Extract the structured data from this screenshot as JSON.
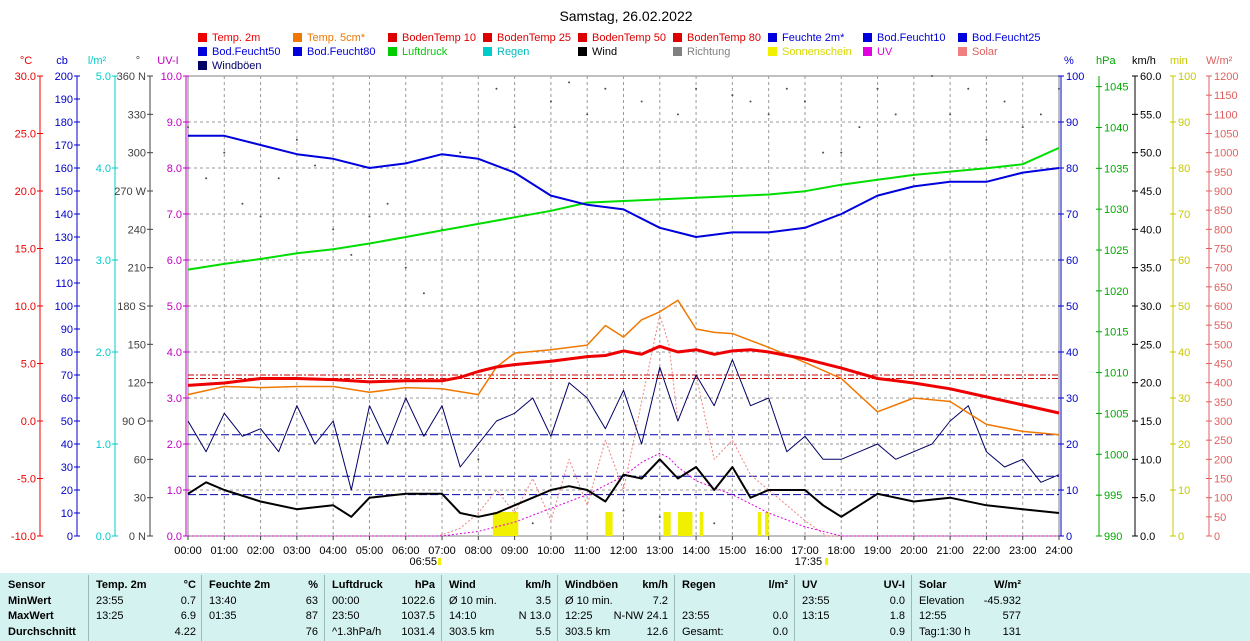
{
  "title": "Samstag, 26.02.2022",
  "legend": [
    {
      "label": "Temp. 2m",
      "color": "#ee0000"
    },
    {
      "label": "Temp. 5cm*",
      "color": "#f07800"
    },
    {
      "label": "BodenTemp 10",
      "color": "#dd0000"
    },
    {
      "label": "BodenTemp 25",
      "color": "#dd0000"
    },
    {
      "label": "BodenTemp 50",
      "color": "#dd0000"
    },
    {
      "label": "BodenTemp 80",
      "color": "#dd0000"
    },
    {
      "label": "Feuchte 2m*",
      "color": "#0000dd"
    },
    {
      "label": "Bod.Feucht10",
      "color": "#0000dd"
    },
    {
      "label": "Bod.Feucht25",
      "color": "#0000dd"
    },
    {
      "label": "Bod.Feucht50",
      "color": "#0000dd"
    },
    {
      "label": "Bod.Feucht80",
      "color": "#0000dd"
    },
    {
      "label": "Luftdruck",
      "color": "#00cc00"
    },
    {
      "label": "Regen",
      "color": "#00cccc"
    },
    {
      "label": "Wind",
      "color": "#000000"
    },
    {
      "label": "Richtung",
      "color": "#808080"
    },
    {
      "label": "Sonnenschein",
      "color": "#f0f000"
    },
    {
      "label": "UV",
      "color": "#e000e0"
    },
    {
      "label": "Solar",
      "color": "#f08080"
    },
    {
      "label": "Windböen",
      "color": "#000066"
    }
  ],
  "colors": {
    "temp": "#ee0000",
    "temp5": "#f07800",
    "humidity": "#0000dd",
    "pressure": "#00dd00",
    "rain": "#00cccc",
    "wind": "#000000",
    "gust": "#000066",
    "direction": "#505050",
    "sun": "#f0f000",
    "uv": "#e000e0",
    "solar": "#f08080",
    "cb": "#0000cc",
    "kmh": "#000000",
    "stats_bg": "#d4f2f0"
  },
  "axes": {
    "temp": {
      "unit": "°C",
      "ticks": [
        "30.0",
        "25.0",
        "20.0",
        "15.0",
        "10.0",
        "5.0",
        "0.0",
        "-5.0",
        "-10.0"
      ]
    },
    "cb": {
      "unit": "cb",
      "ticks": [
        "200",
        "190",
        "180",
        "170",
        "160",
        "150",
        "140",
        "130",
        "120",
        "110",
        "100",
        "90",
        "80",
        "70",
        "60",
        "50",
        "40",
        "30",
        "20",
        "10",
        "0"
      ]
    },
    "rain": {
      "unit": "l/m²",
      "ticks": [
        "5.0",
        "4.0",
        "3.0",
        "2.0",
        "1.0",
        "0.0"
      ]
    },
    "dir": {
      "unit": "°",
      "ticks": [
        "360 N",
        "330",
        "300",
        "270 W",
        "240",
        "210",
        "180 S",
        "150",
        "120",
        "90 O",
        "60",
        "30",
        "0 N"
      ]
    },
    "uv": {
      "unit": "UV-I",
      "ticks": [
        "10.0",
        "9.0",
        "8.0",
        "7.0",
        "6.0",
        "5.0",
        "4.0",
        "3.0",
        "2.0",
        "1.0",
        "0.0"
      ]
    },
    "humidity": {
      "unit": "%",
      "ticks": [
        "100",
        "90",
        "80",
        "70",
        "60",
        "50",
        "40",
        "30",
        "20",
        "10",
        "0"
      ]
    },
    "pressure": {
      "unit": "hPa",
      "ticks": [
        "1045",
        "1040",
        "1035",
        "1030",
        "1025",
        "1020",
        "1015",
        "1010",
        "1005",
        "1000",
        "995",
        "990"
      ]
    },
    "kmh": {
      "unit": "km/h",
      "ticks": [
        "60.0",
        "55.0",
        "50.0",
        "45.0",
        "40.0",
        "35.0",
        "30.0",
        "25.0",
        "20.0",
        "15.0",
        "10.0",
        "5.0",
        "0.0"
      ]
    },
    "min": {
      "unit": "min",
      "ticks": [
        "100",
        "90",
        "80",
        "70",
        "60",
        "50",
        "40",
        "30",
        "20",
        "10",
        "0"
      ]
    },
    "solar": {
      "unit": "W/m²",
      "ticks": [
        "1200",
        "1150",
        "1100",
        "1050",
        "1000",
        "950",
        "900",
        "850",
        "800",
        "750",
        "700",
        "650",
        "600",
        "550",
        "500",
        "450",
        "400",
        "350",
        "300",
        "250",
        "200",
        "150",
        "100",
        "50",
        "0"
      ]
    },
    "time": {
      "ticks": [
        "00:00",
        "01:00",
        "02:00",
        "03:00",
        "04:00",
        "05:00",
        "06:00",
        "07:00",
        "08:00",
        "09:00",
        "10:00",
        "11:00",
        "12:00",
        "13:00",
        "14:00",
        "15:00",
        "16:00",
        "17:00",
        "18:00",
        "19:00",
        "20:00",
        "21:00",
        "22:00",
        "23:00",
        "24:00"
      ]
    },
    "sunrise": "06:55",
    "sunset": "17:35"
  },
  "chart_data": {
    "type": "line",
    "title": "Samstag, 26.02.2022",
    "xlabel": "",
    "x_range": [
      "00:00",
      "24:00"
    ],
    "grid": true,
    "series": [
      {
        "name": "Temp. 2m",
        "unit": "°C",
        "x": [
          0,
          1,
          2,
          3,
          4,
          5,
          6,
          7,
          7.5,
          8,
          8.5,
          9,
          10,
          11,
          11.5,
          12,
          12.5,
          13,
          13.5,
          14,
          14.5,
          15,
          15.5,
          16,
          17,
          18,
          19,
          20,
          21,
          22,
          23,
          24
        ],
        "y": [
          3.1,
          3.3,
          3.7,
          3.7,
          3.6,
          3.4,
          3.5,
          3.5,
          3.8,
          4.3,
          4.7,
          4.9,
          5.2,
          5.6,
          5.7,
          6.1,
          5.8,
          6.5,
          6.0,
          6.2,
          5.8,
          6.1,
          6.2,
          6.0,
          5.4,
          4.6,
          3.7,
          3.3,
          2.8,
          2.1,
          1.4,
          0.7
        ]
      },
      {
        "name": "Temp. 5cm*",
        "unit": "°C",
        "x": [
          0,
          1,
          2,
          3,
          4,
          5,
          6,
          7,
          8,
          8.5,
          9,
          10,
          11,
          11.5,
          12,
          12.5,
          13,
          13.5,
          14,
          14.5,
          15,
          16,
          17,
          18,
          19,
          20,
          21,
          22,
          23,
          24
        ],
        "y": [
          2.3,
          3.0,
          2.9,
          3.0,
          3.0,
          2.5,
          2.9,
          2.8,
          2.3,
          4.7,
          5.9,
          6.2,
          6.6,
          8.3,
          7.3,
          8.8,
          9.5,
          10.5,
          8.0,
          7.7,
          7.6,
          6.4,
          5.1,
          3.7,
          0.8,
          2.0,
          1.7,
          -0.3,
          -0.9,
          -1.2
        ]
      },
      {
        "name": "Feuchte 2m*",
        "unit": "%",
        "x": [
          0,
          1,
          2,
          3,
          4,
          5,
          6,
          7,
          8,
          9,
          10,
          11,
          12,
          13,
          13.5,
          14,
          15,
          16,
          17,
          18,
          19,
          20,
          21,
          22,
          23,
          24
        ],
        "y": [
          87,
          87,
          85,
          83,
          82,
          80,
          81,
          83,
          82,
          79,
          74,
          72,
          71,
          67,
          66,
          65,
          66,
          66,
          67,
          70,
          74,
          76,
          77,
          77,
          79,
          80
        ]
      },
      {
        "name": "Luftdruck",
        "unit": "hPa",
        "x": [
          0,
          1,
          2,
          3,
          4,
          5,
          6,
          7,
          8,
          9,
          10,
          11,
          12,
          13,
          14,
          15,
          16,
          17,
          18,
          19,
          20,
          21,
          22,
          23,
          24
        ],
        "y": [
          1022.6,
          1023.3,
          1023.9,
          1024.6,
          1025.1,
          1025.8,
          1026.6,
          1027.4,
          1028.2,
          1029.0,
          1029.8,
          1030.8,
          1031.0,
          1031.2,
          1031.4,
          1031.6,
          1031.8,
          1032.2,
          1033.0,
          1033.6,
          1034.2,
          1034.6,
          1035.0,
          1035.5,
          1037.5
        ]
      },
      {
        "name": "Wind",
        "unit": "km/h",
        "x": [
          0,
          0.5,
          1,
          2,
          3,
          4,
          4.5,
          5,
          6,
          7,
          7.5,
          8,
          8.5,
          9,
          9.5,
          10,
          10.5,
          11,
          11.5,
          12,
          12.5,
          13,
          13.5,
          14,
          14.5,
          15,
          15.5,
          16,
          16.5,
          17,
          17.5,
          18,
          18.5,
          19,
          20,
          21,
          22,
          23,
          24
        ],
        "y": [
          5.5,
          7.0,
          6.0,
          4.5,
          3.5,
          4.0,
          2.5,
          5.0,
          5.5,
          5.5,
          3.0,
          2.5,
          3.0,
          4.0,
          5.0,
          6.0,
          6.5,
          6.0,
          4.5,
          8.0,
          7.5,
          10.0,
          7.5,
          9.0,
          6.0,
          9.0,
          5.0,
          6.0,
          6.0,
          6.0,
          4.0,
          2.5,
          4.0,
          5.5,
          4.5,
          5.0,
          4.0,
          3.5,
          3.0
        ]
      },
      {
        "name": "Windböen",
        "unit": "km/h",
        "x": [
          0,
          0.5,
          1,
          1.5,
          2,
          2.5,
          3,
          3.5,
          4,
          4.5,
          5,
          5.5,
          6,
          6.5,
          7,
          7.5,
          8,
          8.5,
          9,
          9.5,
          10,
          10.5,
          11,
          11.5,
          12,
          12.5,
          13,
          13.5,
          14,
          14.5,
          15,
          15.5,
          16,
          16.5,
          17,
          17.5,
          18,
          18.5,
          19,
          19.5,
          20,
          20.5,
          21,
          21.5,
          22,
          22.5,
          23,
          23.5,
          24
        ],
        "y": [
          15,
          11,
          16,
          13,
          14,
          11,
          17,
          12,
          15,
          6,
          17,
          12,
          18,
          13,
          17,
          9,
          12,
          15,
          16,
          18,
          13,
          20,
          18,
          14,
          19,
          12,
          22,
          15,
          21,
          17,
          23,
          17,
          18,
          11,
          13,
          10,
          10,
          11,
          12,
          10,
          11,
          12,
          15,
          17,
          11,
          9,
          10,
          7,
          8
        ]
      },
      {
        "name": "Richtung",
        "unit": "°",
        "x": [
          0,
          0.5,
          1,
          1.5,
          2,
          2.5,
          3,
          3.5,
          4,
          4.5,
          5,
          5.5,
          6,
          6.5,
          7,
          7.5,
          8,
          8.5,
          9,
          9.5,
          10,
          10.5,
          11,
          11.5,
          12,
          12.5,
          13,
          13.5,
          14,
          14.5,
          15,
          15.5,
          16,
          16.5,
          17,
          17.5,
          18,
          18.5,
          19,
          19.5,
          20,
          20.5,
          21,
          21.5,
          22,
          22.5,
          23,
          23.5,
          24
        ],
        "y": [
          320,
          280,
          300,
          260,
          250,
          280,
          310,
          290,
          240,
          220,
          250,
          260,
          210,
          190,
          240,
          300,
          60,
          350,
          320,
          10,
          340,
          355,
          330,
          350,
          20,
          340,
          15,
          330,
          350,
          10,
          345,
          340,
          330,
          350,
          340,
          300,
          300,
          320,
          350,
          330,
          280,
          360,
          330,
          350,
          310,
          340,
          320,
          330,
          350
        ]
      },
      {
        "name": "UV",
        "unit": "UV-I",
        "x": [
          0,
          7,
          8,
          9,
          10,
          11,
          12,
          12.5,
          13,
          13.25,
          13.5,
          14,
          15,
          16,
          17,
          18,
          24
        ],
        "y": [
          0,
          0,
          0.1,
          0.3,
          0.6,
          0.9,
          1.3,
          1.6,
          1.8,
          1.7,
          1.5,
          1.2,
          0.9,
          0.5,
          0.2,
          0.0,
          0.0
        ]
      },
      {
        "name": "Solar",
        "unit": "W/m²",
        "x": [
          0,
          6.9,
          7.5,
          8,
          8.5,
          9,
          9.5,
          10,
          10.5,
          11,
          11.5,
          12,
          12.5,
          13,
          13.25,
          13.5,
          14,
          14.5,
          15,
          15.5,
          16,
          16.5,
          17,
          17.6,
          24
        ],
        "y": [
          0,
          0,
          20,
          60,
          120,
          60,
          150,
          40,
          200,
          80,
          250,
          120,
          350,
          577,
          500,
          300,
          420,
          200,
          250,
          160,
          120,
          80,
          40,
          0,
          0
        ]
      },
      {
        "name": "Sonnenschein",
        "unit": "min",
        "intervals": [
          [
            8.4,
            9.1
          ],
          [
            11.5,
            11.7
          ],
          [
            13.1,
            13.3
          ],
          [
            13.5,
            13.9
          ],
          [
            14.1,
            14.2
          ],
          [
            15.7,
            15.8
          ],
          [
            15.9,
            16.0
          ]
        ]
      }
    ]
  },
  "stats": {
    "row_labels": [
      "Sensor",
      "MinWert",
      "MaxWert",
      "Durchschnitt"
    ],
    "groups": [
      {
        "h1": "Temp. 2m",
        "h2": "°C",
        "rows": [
          [
            "23:55",
            "0.7"
          ],
          [
            "13:25",
            "6.9"
          ],
          [
            "",
            "4.22"
          ]
        ]
      },
      {
        "h1": "Feuchte 2m",
        "h2": "%",
        "rows": [
          [
            "13:40",
            "63"
          ],
          [
            "01:35",
            "87"
          ],
          [
            "",
            "76"
          ]
        ]
      },
      {
        "h1": "Luftdruck",
        "h2": "hPa",
        "rows": [
          [
            "00:00",
            "1022.6"
          ],
          [
            "23:50",
            "1037.5"
          ],
          [
            "^1.3hPa/h",
            "1031.4"
          ]
        ]
      },
      {
        "h1": "Wind",
        "h2": "km/h",
        "rows": [
          [
            "Ø 10 min.",
            "3.5"
          ],
          [
            "14:10",
            "N 13.0"
          ],
          [
            "303.5 km",
            "5.5"
          ]
        ]
      },
      {
        "h1": "Windböen",
        "h2": "km/h",
        "rows": [
          [
            "Ø 10 min.",
            "7.2"
          ],
          [
            "12:25",
            "N-NW 24.1"
          ],
          [
            "303.5 km",
            "12.6"
          ]
        ]
      },
      {
        "h1": "Regen",
        "h2": "l/m²",
        "rows": [
          [
            "",
            ""
          ],
          [
            "23:55",
            "0.0"
          ],
          [
            "Gesamt:",
            "0.0"
          ]
        ]
      },
      {
        "h1": "UV",
        "h2": "UV-I",
        "rows": [
          [
            "23:55",
            "0.0"
          ],
          [
            "13:15",
            "1.8"
          ],
          [
            "",
            "0.9"
          ]
        ]
      },
      {
        "h1": "Solar",
        "h2": "W/m²",
        "rows": [
          [
            "Elevation",
            "-45.932"
          ],
          [
            "12:55",
            "577"
          ],
          [
            "Tag:1:30 h",
            "131"
          ]
        ]
      }
    ]
  }
}
